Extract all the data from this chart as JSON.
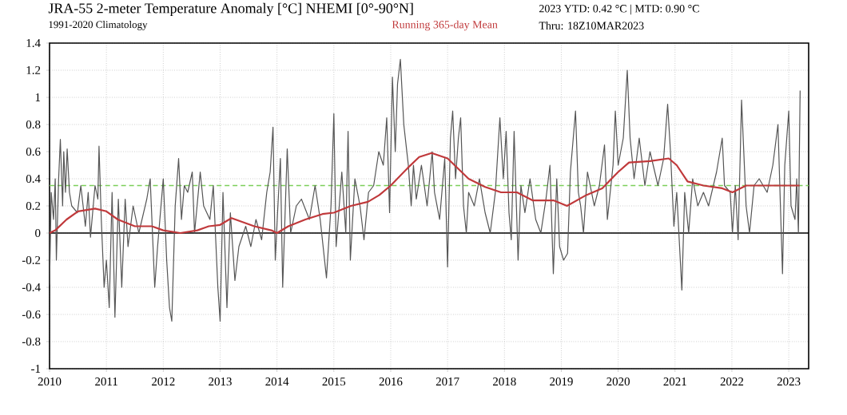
{
  "chart_data": {
    "type": "line",
    "title": "JRA-55 2-meter Temperature Anomaly [°C] NHEMI [0°-90°N]",
    "subtitle": "1991-2020 Climatology",
    "annotations": [
      "2023 YTD: 0.42 °C | MTD: 0.90 °C",
      "Thru: 18Z10MAR2023"
    ],
    "xlim": [
      2010,
      2023.35
    ],
    "xticks": [
      2010,
      2011,
      2012,
      2013,
      2014,
      2015,
      2016,
      2017,
      2018,
      2019,
      2020,
      2021,
      2022,
      2023
    ],
    "ylim": [
      -1,
      1.4
    ],
    "yticks": [
      -1,
      -0.8,
      -0.6,
      -0.4,
      -0.2,
      0,
      0.2,
      0.4,
      0.6,
      0.8,
      1,
      1.2,
      1.4
    ],
    "grid": true,
    "ref_lines": [
      {
        "axis": "y",
        "value": 0,
        "color": "#000000",
        "line_style": "solid"
      },
      {
        "axis": "y",
        "value": 0.35,
        "color": "#7ccf5a",
        "line_style": "dashed"
      }
    ],
    "series": [
      {
        "color": "#555555",
        "x": [
          2010.0,
          2010.03,
          2010.07,
          2010.1,
          2010.12,
          2010.16,
          2010.19,
          2010.23,
          2010.25,
          2010.28,
          2010.31,
          2010.35,
          2010.39,
          2010.49,
          2010.55,
          2010.63,
          2010.68,
          2010.72,
          2010.8,
          2010.85,
          2010.87,
          2010.91,
          2010.96,
          2011.0,
          2011.05,
          2011.1,
          2011.15,
          2011.21,
          2011.27,
          2011.33,
          2011.38,
          2011.47,
          2011.57,
          2011.71,
          2011.77,
          2011.85,
          2011.9,
          2012.0,
          2012.06,
          2012.11,
          2012.15,
          2012.21,
          2012.27,
          2012.32,
          2012.37,
          2012.43,
          2012.51,
          2012.55,
          2012.65,
          2012.71,
          2012.82,
          2012.88,
          2012.96,
          2013.0,
          2013.05,
          2013.12,
          2013.18,
          2013.26,
          2013.33,
          2013.45,
          2013.54,
          2013.63,
          2013.73,
          2013.82,
          2013.88,
          2013.93,
          2013.97,
          2014.01,
          2014.06,
          2014.1,
          2014.18,
          2014.24,
          2014.34,
          2014.43,
          2014.57,
          2014.67,
          2014.76,
          2014.87,
          2014.95,
          2015.0,
          2015.04,
          2015.14,
          2015.21,
          2015.25,
          2015.29,
          2015.37,
          2015.46,
          2015.53,
          2015.61,
          2015.7,
          2015.79,
          2015.87,
          2015.93,
          2015.98,
          2016.03,
          2016.08,
          2016.12,
          2016.17,
          2016.23,
          2016.31,
          2016.36,
          2016.4,
          2016.45,
          2016.54,
          2016.64,
          2016.73,
          2016.77,
          2016.86,
          2016.95,
          2017.0,
          2017.05,
          2017.09,
          2017.14,
          2017.19,
          2017.23,
          2017.28,
          2017.33,
          2017.37,
          2017.47,
          2017.56,
          2017.66,
          2017.75,
          2017.84,
          2017.92,
          2017.98,
          2018.03,
          2018.08,
          2018.12,
          2018.17,
          2018.24,
          2018.29,
          2018.36,
          2018.45,
          2018.55,
          2018.64,
          2018.73,
          2018.8,
          2018.86,
          2018.92,
          2018.97,
          2019.04,
          2019.11,
          2019.16,
          2019.25,
          2019.3,
          2019.34,
          2019.39,
          2019.46,
          2019.58,
          2019.67,
          2019.76,
          2019.81,
          2019.91,
          2019.95,
          2020.0,
          2020.09,
          2020.16,
          2020.21,
          2020.28,
          2020.37,
          2020.47,
          2020.56,
          2020.7,
          2020.8,
          2020.87,
          2020.92,
          2020.98,
          2021.03,
          2021.08,
          2021.12,
          2021.17,
          2021.24,
          2021.31,
          2021.4,
          2021.5,
          2021.59,
          2021.73,
          2021.83,
          2021.87,
          2021.97,
          2022.01,
          2022.06,
          2022.11,
          2022.17,
          2022.25,
          2022.31,
          2022.39,
          2022.48,
          2022.62,
          2022.72,
          2022.81,
          2022.89,
          2022.93,
          2023.0,
          2023.04,
          2023.11,
          2023.14,
          2023.17,
          2023.2
        ],
        "values": [
          -0.38,
          0.3,
          0.1,
          0.4,
          -0.2,
          0.4,
          0.69,
          0.2,
          0.6,
          0.3,
          0.62,
          0.3,
          0.2,
          0.15,
          0.35,
          0.05,
          0.3,
          -0.03,
          0.35,
          0.25,
          0.64,
          0.1,
          -0.4,
          -0.2,
          -0.55,
          0.3,
          -0.62,
          0.25,
          -0.4,
          0.25,
          -0.1,
          0.2,
          0.0,
          0.25,
          0.4,
          -0.4,
          -0.1,
          0.4,
          -0.2,
          -0.55,
          -0.65,
          0.2,
          0.55,
          0.1,
          0.35,
          0.3,
          0.45,
          0.0,
          0.45,
          0.2,
          0.1,
          0.35,
          -0.4,
          -0.65,
          0.3,
          -0.55,
          0.15,
          -0.35,
          -0.1,
          0.05,
          -0.1,
          0.1,
          -0.05,
          0.3,
          0.45,
          0.78,
          -0.2,
          0.15,
          0.55,
          -0.4,
          0.62,
          0.0,
          0.2,
          0.25,
          0.1,
          0.35,
          0.1,
          -0.33,
          0.2,
          0.88,
          -0.1,
          0.45,
          0.0,
          0.75,
          -0.2,
          0.4,
          0.2,
          -0.05,
          0.3,
          0.35,
          0.6,
          0.5,
          0.85,
          0.15,
          1.15,
          0.6,
          1.1,
          1.28,
          0.8,
          0.5,
          0.2,
          0.5,
          0.25,
          0.5,
          0.2,
          0.6,
          0.3,
          0.1,
          0.55,
          -0.25,
          0.7,
          0.9,
          0.4,
          0.7,
          0.85,
          0.2,
          0.0,
          0.3,
          0.2,
          0.4,
          0.15,
          0.0,
          0.3,
          0.85,
          0.4,
          0.75,
          0.15,
          -0.05,
          0.75,
          -0.2,
          0.35,
          0.15,
          0.4,
          0.1,
          0.0,
          0.25,
          0.5,
          -0.3,
          0.4,
          -0.1,
          -0.2,
          -0.15,
          0.45,
          0.9,
          0.3,
          0.2,
          0.0,
          0.45,
          0.2,
          0.35,
          0.65,
          0.1,
          0.5,
          0.9,
          0.5,
          0.7,
          1.2,
          0.7,
          0.4,
          0.7,
          0.35,
          0.6,
          0.35,
          0.55,
          0.95,
          0.6,
          0.05,
          0.3,
          -0.1,
          -0.42,
          0.3,
          0.0,
          0.4,
          0.2,
          0.3,
          0.2,
          0.45,
          0.7,
          0.35,
          0.3,
          0.0,
          0.35,
          -0.05,
          0.98,
          0.2,
          0.0,
          0.35,
          0.4,
          0.3,
          0.5,
          0.8,
          -0.3,
          0.5,
          0.9,
          0.2,
          0.1,
          0.4,
          0.0,
          1.05
        ]
      },
      {
        "name": "Running 365-day Mean",
        "color": "#c0393b",
        "x": [
          2010.0,
          2010.1,
          2010.3,
          2010.5,
          2010.8,
          2011.0,
          2011.2,
          2011.5,
          2011.8,
          2012.0,
          2012.3,
          2012.6,
          2012.8,
          2013.0,
          2013.2,
          2013.4,
          2013.6,
          2013.9,
          2014.0,
          2014.2,
          2014.5,
          2014.8,
          2015.0,
          2015.3,
          2015.6,
          2015.8,
          2016.0,
          2016.3,
          2016.5,
          2016.72,
          2017.0,
          2017.37,
          2017.66,
          2017.94,
          2018.22,
          2018.5,
          2018.87,
          2019.1,
          2019.44,
          2019.72,
          2020.0,
          2020.19,
          2020.56,
          2020.89,
          2021.03,
          2021.22,
          2021.5,
          2021.83,
          2022.01,
          2022.25,
          2022.62,
          2023.0,
          2023.19
        ],
        "values": [
          0.0,
          0.02,
          0.1,
          0.16,
          0.18,
          0.16,
          0.1,
          0.05,
          0.05,
          0.02,
          0.0,
          0.02,
          0.05,
          0.06,
          0.11,
          0.08,
          0.05,
          0.02,
          0.0,
          0.05,
          0.1,
          0.14,
          0.15,
          0.2,
          0.23,
          0.28,
          0.35,
          0.48,
          0.56,
          0.59,
          0.55,
          0.4,
          0.34,
          0.3,
          0.3,
          0.24,
          0.24,
          0.2,
          0.28,
          0.33,
          0.45,
          0.52,
          0.53,
          0.55,
          0.5,
          0.38,
          0.35,
          0.33,
          0.3,
          0.35,
          0.35,
          0.35,
          0.35
        ]
      }
    ]
  }
}
